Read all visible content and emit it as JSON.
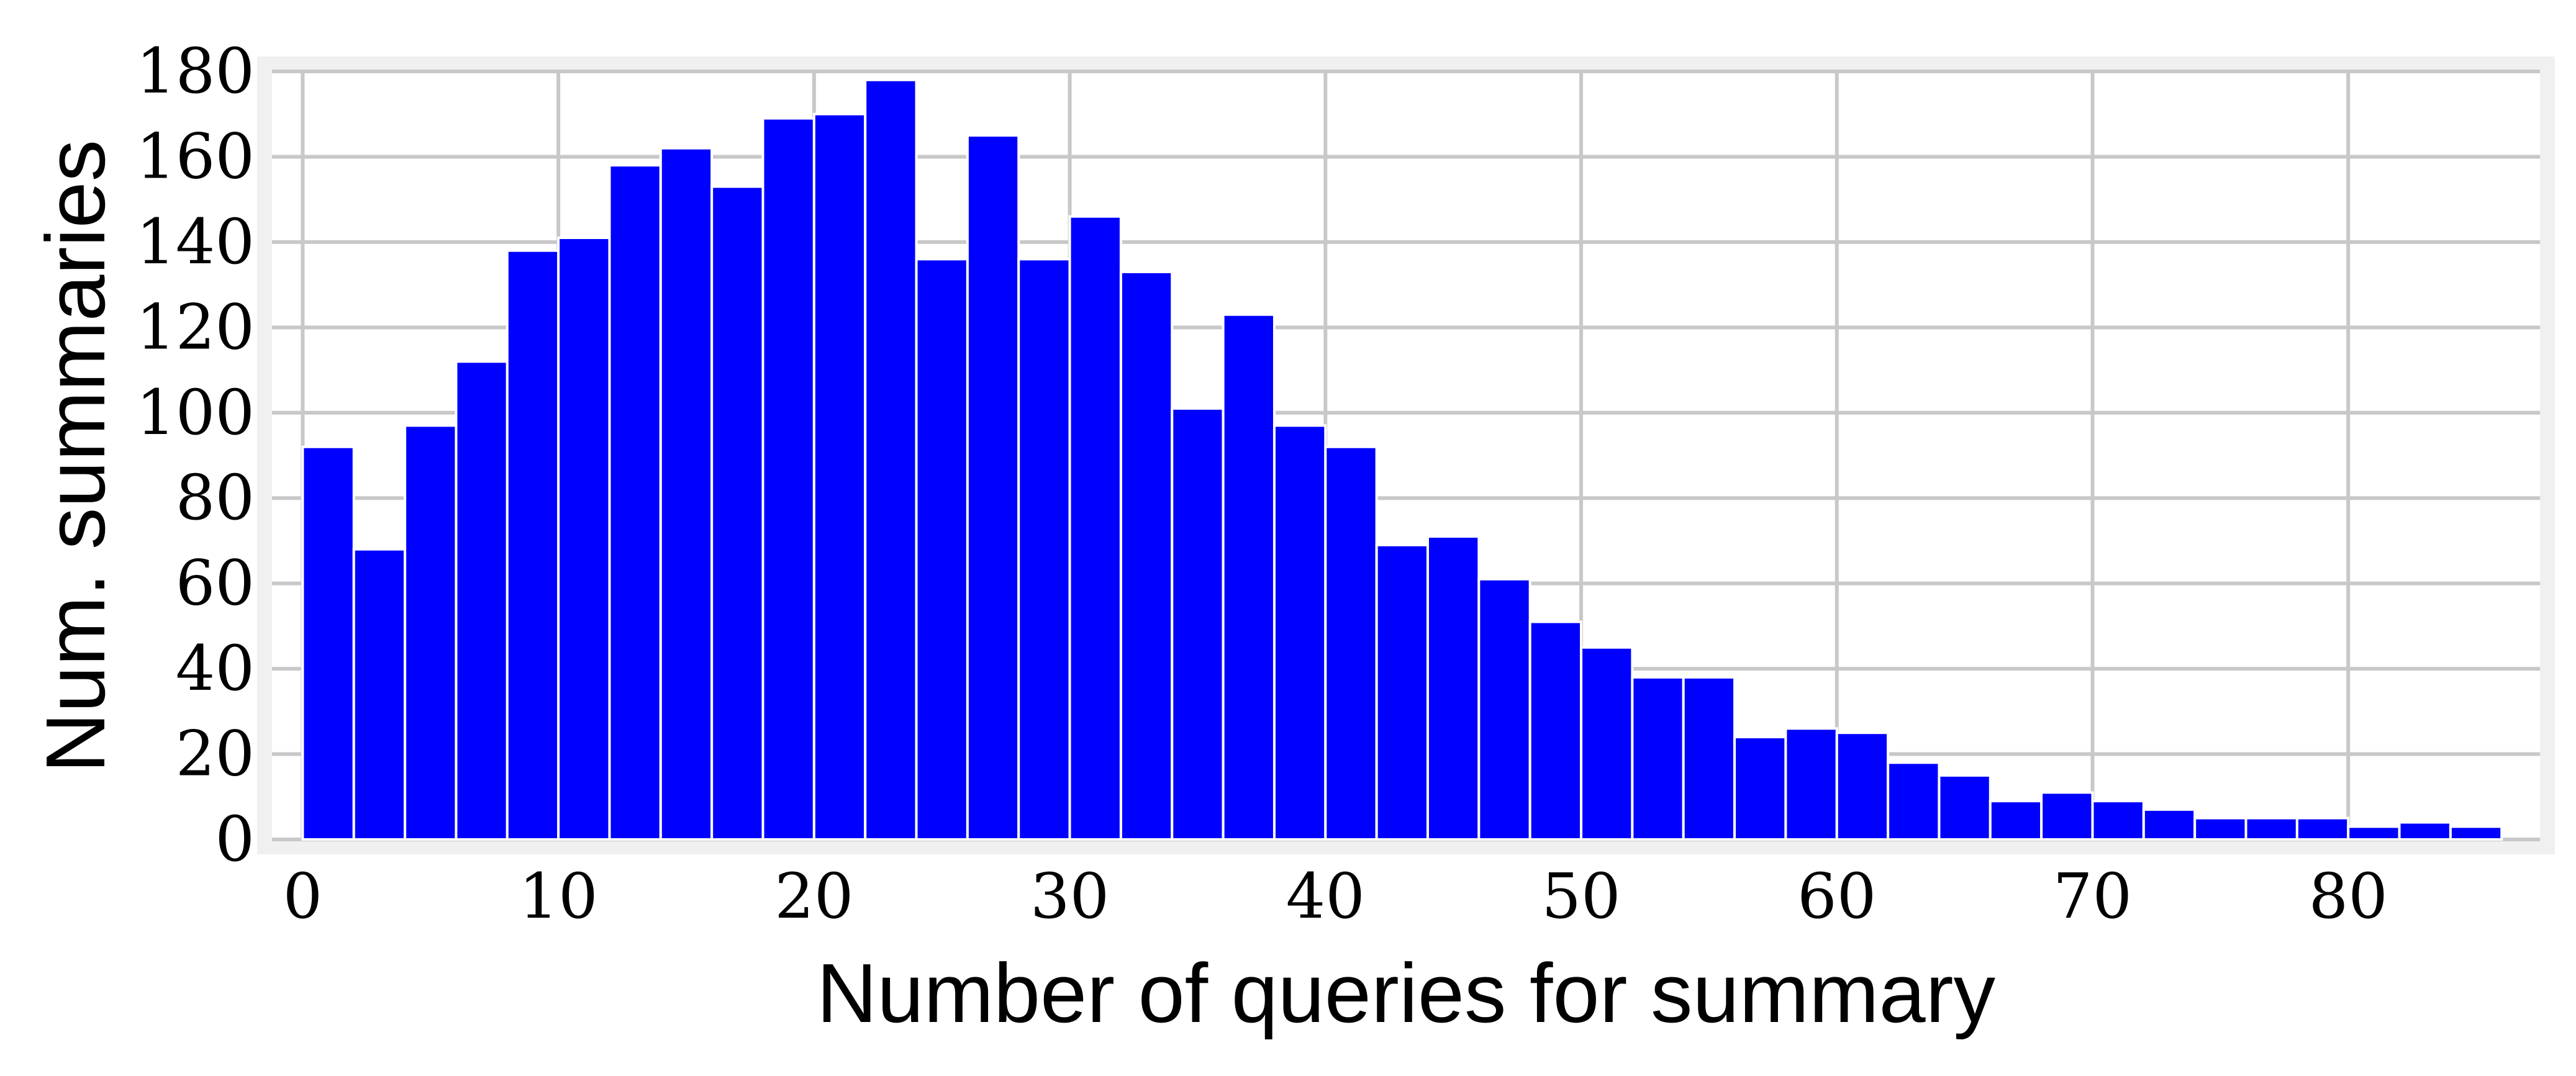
{
  "chart_data": {
    "type": "bar",
    "xlabel": "Number of queries for summary",
    "ylabel": "Num. summaries",
    "xlim": [
      -1.2,
      87.5
    ],
    "ylim": [
      0,
      180
    ],
    "bin_width": 2,
    "bin_start": 0,
    "values": [
      92,
      68,
      97,
      112,
      138,
      141,
      158,
      162,
      153,
      169,
      170,
      178,
      136,
      165,
      136,
      146,
      133,
      101,
      123,
      97,
      92,
      69,
      71,
      61,
      51,
      45,
      38,
      38,
      24,
      26,
      25,
      18,
      15,
      9,
      11,
      9,
      7,
      5,
      5,
      5,
      3,
      4,
      3
    ],
    "x_ticks": [
      0,
      10,
      20,
      30,
      40,
      50,
      60,
      70,
      80
    ],
    "x_tick_labels": [
      "0",
      "10",
      "20",
      "30",
      "40",
      "50",
      "60",
      "70",
      "80"
    ],
    "y_ticks": [
      0,
      20,
      40,
      60,
      80,
      100,
      120,
      140,
      160,
      180
    ],
    "y_tick_labels": [
      "0",
      "20",
      "40",
      "60",
      "80",
      "100",
      "120",
      "140",
      "160",
      "180"
    ],
    "grid": true,
    "colors": {
      "bar": "#0000ff",
      "grid": "#c8c8c8",
      "frame": "#f0f0f0",
      "background": "#ffffff"
    }
  }
}
